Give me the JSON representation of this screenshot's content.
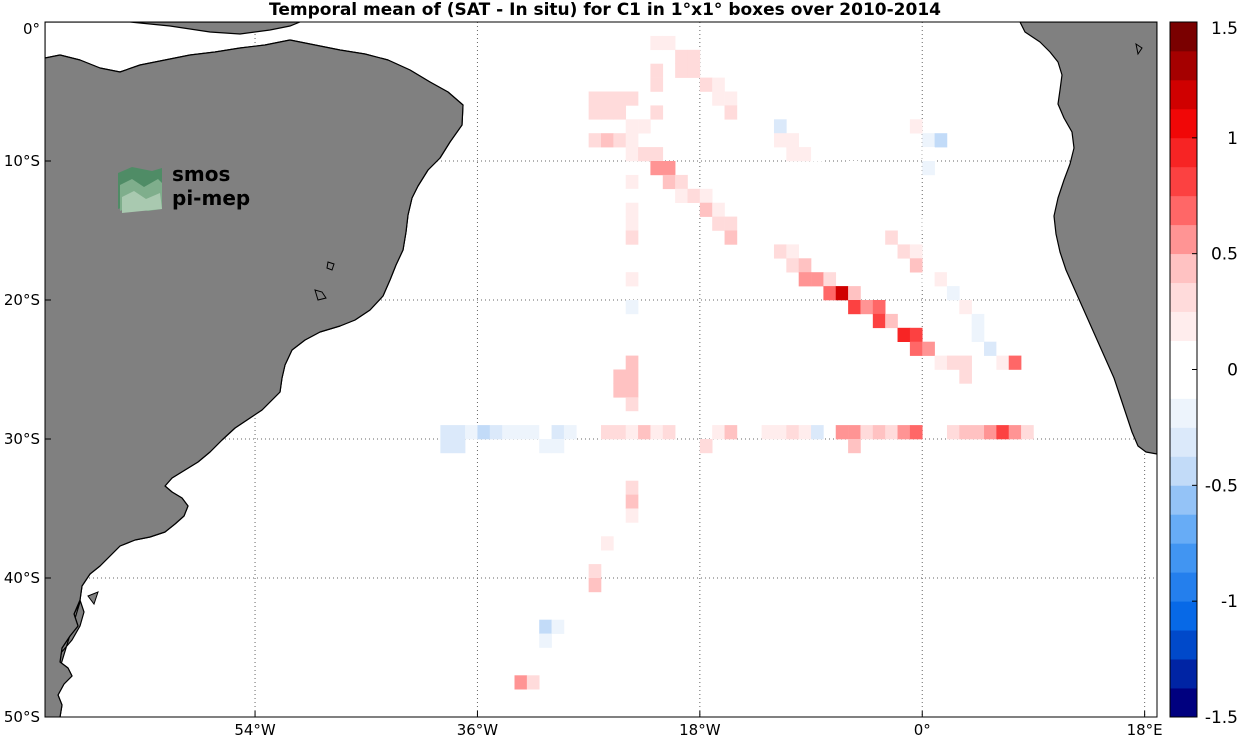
{
  "title": "Temporal mean of (SAT - In situ) for C1 in 1°x1° boxes over 2010-2014",
  "logo": {
    "text_line1": "smos",
    "text_line2": "pi-mep"
  },
  "colors": {
    "land": "#808080",
    "coast": "#000000",
    "grid": "#666666",
    "positive_max": "#7a0000",
    "negative_max": "#00007f"
  },
  "map": {
    "lon_range": [
      -71,
      19
    ],
    "lat_range": [
      -50,
      0
    ],
    "lon_ticks": [
      {
        "value": -54,
        "label": "54°W"
      },
      {
        "value": -36,
        "label": "36°W"
      },
      {
        "value": -18,
        "label": "18°W"
      },
      {
        "value": 0,
        "label": "0°"
      },
      {
        "value": 18,
        "label": "18°E"
      }
    ],
    "lat_ticks": [
      {
        "value": 0,
        "label": "0°"
      },
      {
        "value": -10,
        "label": "10°S"
      },
      {
        "value": -20,
        "label": "20°S"
      },
      {
        "value": -30,
        "label": "30°S"
      },
      {
        "value": -40,
        "label": "40°S"
      },
      {
        "value": -50,
        "label": "50°S"
      }
    ],
    "grid": "dotted"
  },
  "colorbar": {
    "range": [
      -1.5,
      1.5
    ],
    "levels": 24,
    "tick_labels": [
      "1.5",
      "1",
      "0.5",
      "0",
      "-0.5",
      "-1",
      "-1.5"
    ],
    "tick_values": [
      1.5,
      1,
      0.5,
      0,
      -0.5,
      -1,
      -1.5
    ]
  },
  "chart_data": {
    "type": "heatmap",
    "title": "Temporal mean of (SAT - In situ) for C1 in 1°x1° boxes over 2010-2014",
    "variable": "SAT - In situ",
    "value_range": [
      -1.5,
      1.5
    ],
    "cell_size_deg": 1,
    "cells": [
      {
        "lon": -22,
        "lat": -1,
        "v": 0.15
      },
      {
        "lon": -21,
        "lat": -1,
        "v": 0.2
      },
      {
        "lon": -24,
        "lat": -2,
        "v": 0.1
      },
      {
        "lon": -20,
        "lat": -2,
        "v": 0.25
      },
      {
        "lon": -19,
        "lat": -2,
        "v": 0.25
      },
      {
        "lon": -24,
        "lat": -3,
        "v": 0.1
      },
      {
        "lon": -22,
        "lat": -3,
        "v": 0.3
      },
      {
        "lon": -20,
        "lat": -3,
        "v": 0.3
      },
      {
        "lon": -19,
        "lat": -3,
        "v": 0.3
      },
      {
        "lon": -24,
        "lat": -4,
        "v": 0.1
      },
      {
        "lon": -22,
        "lat": -4,
        "v": 0.25
      },
      {
        "lon": -18,
        "lat": -4,
        "v": 0.3
      },
      {
        "lon": -17,
        "lat": -4,
        "v": 0.15
      },
      {
        "lon": -27,
        "lat": -5,
        "v": 0.25
      },
      {
        "lon": -26,
        "lat": -5,
        "v": 0.25
      },
      {
        "lon": -25,
        "lat": -5,
        "v": 0.25
      },
      {
        "lon": -24,
        "lat": -5,
        "v": 0.3
      },
      {
        "lon": -17,
        "lat": -5,
        "v": 0.2
      },
      {
        "lon": -16,
        "lat": -5,
        "v": 0.2
      },
      {
        "lon": -27,
        "lat": -6,
        "v": 0.25
      },
      {
        "lon": -26,
        "lat": -6,
        "v": 0.25
      },
      {
        "lon": -25,
        "lat": -6,
        "v": 0.25
      },
      {
        "lon": -22,
        "lat": -6,
        "v": 0.3
      },
      {
        "lon": -16,
        "lat": -6,
        "v": 0.25
      },
      {
        "lon": -24,
        "lat": -7,
        "v": 0.15
      },
      {
        "lon": -23,
        "lat": -7,
        "v": 0.15
      },
      {
        "lon": -12,
        "lat": -7,
        "v": -0.3
      },
      {
        "lon": -3,
        "lat": -7,
        "v": 0.1
      },
      {
        "lon": -1,
        "lat": -7,
        "v": 0.15
      },
      {
        "lon": -27,
        "lat": -8,
        "v": 0.35
      },
      {
        "lon": -26,
        "lat": -8,
        "v": 0.45
      },
      {
        "lon": -25,
        "lat": -8,
        "v": 0.25
      },
      {
        "lon": -24,
        "lat": -8,
        "v": 0.15
      },
      {
        "lon": -22,
        "lat": -8,
        "v": 0.1
      },
      {
        "lon": -12,
        "lat": -8,
        "v": 0.15
      },
      {
        "lon": -11,
        "lat": -8,
        "v": 0.2
      },
      {
        "lon": 0,
        "lat": -8,
        "v": -0.15
      },
      {
        "lon": 1,
        "lat": -8,
        "v": -0.4
      },
      {
        "lon": -24,
        "lat": -9,
        "v": 0.15
      },
      {
        "lon": -23,
        "lat": -9,
        "v": 0.35
      },
      {
        "lon": -22,
        "lat": -9,
        "v": 0.3
      },
      {
        "lon": -11,
        "lat": -9,
        "v": 0.2
      },
      {
        "lon": -10,
        "lat": -9,
        "v": 0.15
      },
      {
        "lon": -9,
        "lat": -9,
        "v": -0.1
      },
      {
        "lon": 0,
        "lat": -9,
        "v": -0.1
      },
      {
        "lon": -22,
        "lat": -10,
        "v": 0.5
      },
      {
        "lon": -21,
        "lat": -10,
        "v": 0.55
      },
      {
        "lon": -6,
        "lat": -10,
        "v": -0.1
      },
      {
        "lon": 0,
        "lat": -10,
        "v": -0.15
      },
      {
        "lon": -24,
        "lat": -11,
        "v": 0.15
      },
      {
        "lon": -21,
        "lat": -11,
        "v": 0.4
      },
      {
        "lon": -20,
        "lat": -11,
        "v": 0.35
      },
      {
        "lon": -6,
        "lat": -11,
        "v": -0.1
      },
      {
        "lon": -24,
        "lat": -12,
        "v": 0.1
      },
      {
        "lon": -20,
        "lat": -12,
        "v": 0.15
      },
      {
        "lon": -19,
        "lat": -12,
        "v": 0.3
      },
      {
        "lon": -18,
        "lat": -12,
        "v": 0.2
      },
      {
        "lon": -24,
        "lat": -13,
        "v": 0.15
      },
      {
        "lon": -18,
        "lat": -13,
        "v": 0.45
      },
      {
        "lon": -17,
        "lat": -13,
        "v": 0.2
      },
      {
        "lon": -24,
        "lat": -14,
        "v": 0.2
      },
      {
        "lon": -17,
        "lat": -14,
        "v": 0.3
      },
      {
        "lon": -16,
        "lat": -14,
        "v": 0.25
      },
      {
        "lon": -4,
        "lat": -14,
        "v": -0.1
      },
      {
        "lon": 0,
        "lat": -14,
        "v": -0.1
      },
      {
        "lon": -24,
        "lat": -15,
        "v": 0.25
      },
      {
        "lon": -16,
        "lat": -15,
        "v": 0.4
      },
      {
        "lon": -3,
        "lat": -15,
        "v": 0.3
      },
      {
        "lon": -12,
        "lat": -16,
        "v": 0.3
      },
      {
        "lon": -11,
        "lat": -16,
        "v": 0.2
      },
      {
        "lon": -2,
        "lat": -16,
        "v": 0.3
      },
      {
        "lon": -1,
        "lat": -16,
        "v": 0.15
      },
      {
        "lon": 2,
        "lat": -16,
        "v": -0.1
      },
      {
        "lon": -11,
        "lat": -17,
        "v": 0.3
      },
      {
        "lon": -10,
        "lat": -17,
        "v": 0.45
      },
      {
        "lon": -1,
        "lat": -17,
        "v": 0.4
      },
      {
        "lon": 2,
        "lat": -17,
        "v": -0.1
      },
      {
        "lon": -24,
        "lat": -18,
        "v": 0.2
      },
      {
        "lon": -10,
        "lat": -18,
        "v": 0.6
      },
      {
        "lon": -9,
        "lat": -18,
        "v": 0.55
      },
      {
        "lon": -8,
        "lat": -18,
        "v": 0.35
      },
      {
        "lon": 0,
        "lat": -18,
        "v": 0.1
      },
      {
        "lon": 1,
        "lat": -18,
        "v": 0.15
      },
      {
        "lon": 2,
        "lat": -18,
        "v": -0.1
      },
      {
        "lon": -8,
        "lat": -19,
        "v": 0.7
      },
      {
        "lon": -7,
        "lat": -19,
        "v": 1.15
      },
      {
        "lon": -6,
        "lat": -19,
        "v": 0.45
      },
      {
        "lon": 2,
        "lat": -19,
        "v": -0.15
      },
      {
        "lon": -24,
        "lat": -20,
        "v": -0.15
      },
      {
        "lon": -6,
        "lat": -20,
        "v": 0.75
      },
      {
        "lon": -5,
        "lat": -20,
        "v": 0.55
      },
      {
        "lon": -4,
        "lat": -20,
        "v": 0.65
      },
      {
        "lon": 3,
        "lat": -20,
        "v": 0.2
      },
      {
        "lon": -4,
        "lat": -21,
        "v": 0.85
      },
      {
        "lon": -3,
        "lat": -21,
        "v": 0.4
      },
      {
        "lon": 4,
        "lat": -21,
        "v": -0.15
      },
      {
        "lon": -2,
        "lat": -22,
        "v": 0.9
      },
      {
        "lon": -1,
        "lat": -22,
        "v": 0.8
      },
      {
        "lon": 4,
        "lat": -22,
        "v": -0.15
      },
      {
        "lon": -1,
        "lat": -23,
        "v": 0.7
      },
      {
        "lon": 0,
        "lat": -23,
        "v": 0.55
      },
      {
        "lon": 5,
        "lat": -23,
        "v": -0.3
      },
      {
        "lon": 6,
        "lat": -23,
        "v": -0.1
      },
      {
        "lon": -24,
        "lat": -24,
        "v": 0.4
      },
      {
        "lon": 1,
        "lat": -24,
        "v": 0.15
      },
      {
        "lon": 2,
        "lat": -24,
        "v": 0.35
      },
      {
        "lon": 3,
        "lat": -24,
        "v": 0.25
      },
      {
        "lon": 6,
        "lat": -24,
        "v": 0.2
      },
      {
        "lon": 7,
        "lat": -24,
        "v": 0.7
      },
      {
        "lon": -25,
        "lat": -25,
        "v": 0.45
      },
      {
        "lon": -24,
        "lat": -25,
        "v": 0.4
      },
      {
        "lon": 3,
        "lat": -25,
        "v": 0.35
      },
      {
        "lon": -25,
        "lat": -26,
        "v": 0.4
      },
      {
        "lon": -24,
        "lat": -26,
        "v": 0.45
      },
      {
        "lon": -24,
        "lat": -27,
        "v": 0.35
      },
      {
        "lon": -24,
        "lat": -28,
        "v": -0.1
      },
      {
        "lon": -39,
        "lat": -29,
        "v": -0.35
      },
      {
        "lon": -38,
        "lat": -29,
        "v": -0.3
      },
      {
        "lon": -37,
        "lat": -29,
        "v": -0.2
      },
      {
        "lon": -36,
        "lat": -29,
        "v": -0.45
      },
      {
        "lon": -35,
        "lat": -29,
        "v": -0.35
      },
      {
        "lon": -34,
        "lat": -29,
        "v": -0.2
      },
      {
        "lon": -33,
        "lat": -29,
        "v": -0.15
      },
      {
        "lon": -32,
        "lat": -29,
        "v": -0.2
      },
      {
        "lon": -31,
        "lat": -29,
        "v": -0.1
      },
      {
        "lon": -30,
        "lat": -29,
        "v": -0.3
      },
      {
        "lon": -29,
        "lat": -29,
        "v": -0.15
      },
      {
        "lon": -26,
        "lat": -29,
        "v": 0.25
      },
      {
        "lon": -25,
        "lat": -29,
        "v": 0.3
      },
      {
        "lon": -24,
        "lat": -29,
        "v": 0.2
      },
      {
        "lon": -23,
        "lat": -29,
        "v": 0.4
      },
      {
        "lon": -22,
        "lat": -29,
        "v": 0.15
      },
      {
        "lon": -21,
        "lat": -29,
        "v": 0.3
      },
      {
        "lon": -17,
        "lat": -29,
        "v": 0.2
      },
      {
        "lon": -16,
        "lat": -29,
        "v": 0.45
      },
      {
        "lon": -13,
        "lat": -29,
        "v": 0.15
      },
      {
        "lon": -12,
        "lat": -29,
        "v": 0.15
      },
      {
        "lon": -11,
        "lat": -29,
        "v": 0.35
      },
      {
        "lon": -10,
        "lat": -29,
        "v": 0.2
      },
      {
        "lon": -9,
        "lat": -29,
        "v": -0.3
      },
      {
        "lon": -7,
        "lat": -29,
        "v": 0.5
      },
      {
        "lon": -6,
        "lat": -29,
        "v": 0.55
      },
      {
        "lon": -5,
        "lat": -29,
        "v": 0.25
      },
      {
        "lon": -4,
        "lat": -29,
        "v": 0.4
      },
      {
        "lon": -3,
        "lat": -29,
        "v": 0.35
      },
      {
        "lon": -2,
        "lat": -29,
        "v": 0.5
      },
      {
        "lon": -1,
        "lat": -29,
        "v": 0.7
      },
      {
        "lon": 2,
        "lat": -29,
        "v": 0.25
      },
      {
        "lon": 3,
        "lat": -29,
        "v": 0.45
      },
      {
        "lon": 4,
        "lat": -29,
        "v": 0.45
      },
      {
        "lon": 5,
        "lat": -29,
        "v": 0.55
      },
      {
        "lon": 6,
        "lat": -29,
        "v": 0.85
      },
      {
        "lon": 7,
        "lat": -29,
        "v": 0.55
      },
      {
        "lon": 8,
        "lat": -29,
        "v": 0.3
      },
      {
        "lon": -39,
        "lat": -30,
        "v": -0.35
      },
      {
        "lon": -38,
        "lat": -30,
        "v": -0.3
      },
      {
        "lon": -31,
        "lat": -30,
        "v": -0.15
      },
      {
        "lon": -30,
        "lat": -30,
        "v": -0.15
      },
      {
        "lon": -18,
        "lat": -30,
        "v": 0.35
      },
      {
        "lon": -6,
        "lat": -30,
        "v": 0.45
      },
      {
        "lon": -24,
        "lat": -33,
        "v": 0.35
      },
      {
        "lon": -24,
        "lat": -34,
        "v": 0.4
      },
      {
        "lon": -24,
        "lat": -35,
        "v": 0.2
      },
      {
        "lon": -26,
        "lat": -37,
        "v": 0.2
      },
      {
        "lon": -27,
        "lat": -39,
        "v": 0.35
      },
      {
        "lon": -27,
        "lat": -40,
        "v": 0.4
      },
      {
        "lon": -31,
        "lat": -43,
        "v": -0.4
      },
      {
        "lon": -30,
        "lat": -43,
        "v": -0.25
      },
      {
        "lon": -31,
        "lat": -44,
        "v": -0.25
      },
      {
        "lon": -33,
        "lat": -47,
        "v": 0.55
      },
      {
        "lon": -32,
        "lat": -47,
        "v": 0.3
      }
    ]
  }
}
